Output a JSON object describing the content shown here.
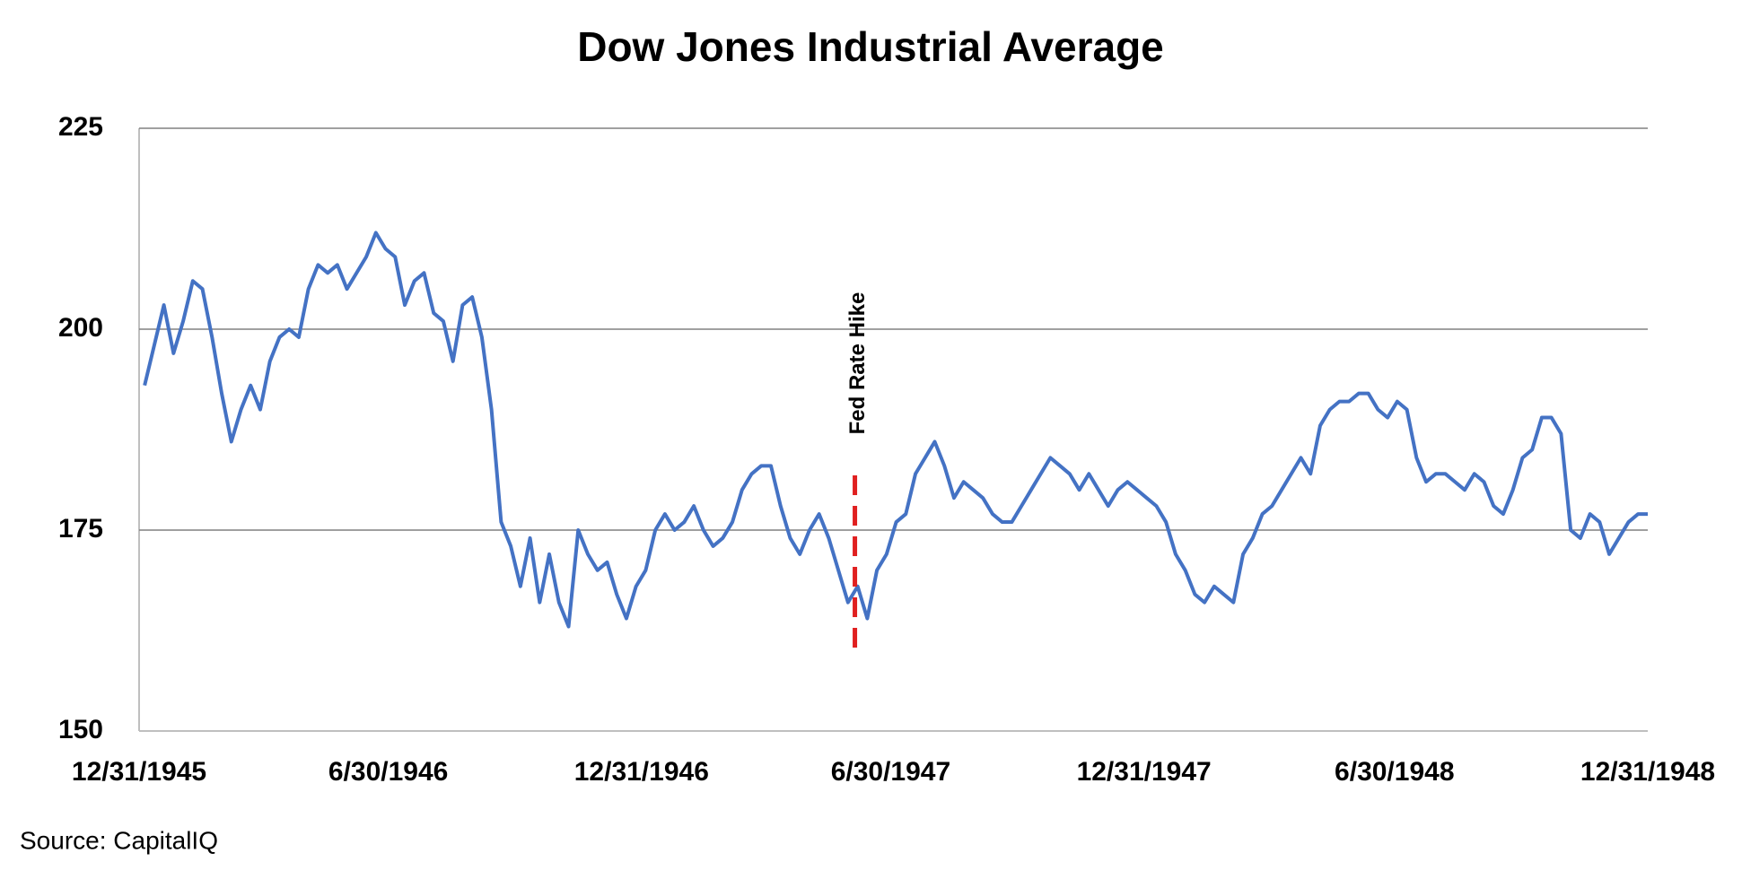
{
  "chart_data": {
    "type": "line",
    "title": "Dow Jones Industrial Average",
    "source": "Source: CapitalIQ",
    "color": "#4472c4",
    "grid": true,
    "x": [
      "1946-01-04",
      "1946-01-11",
      "1946-01-18",
      "1946-01-25",
      "1946-02-01",
      "1946-02-08",
      "1946-02-15",
      "1946-02-22",
      "1946-03-01",
      "1946-03-08",
      "1946-03-15",
      "1946-03-22",
      "1946-03-29",
      "1946-04-05",
      "1946-04-12",
      "1946-04-19",
      "1946-04-26",
      "1946-05-03",
      "1946-05-10",
      "1946-05-17",
      "1946-05-24",
      "1946-05-31",
      "1946-06-07",
      "1946-06-14",
      "1946-06-21",
      "1946-06-28",
      "1946-07-05",
      "1946-07-12",
      "1946-07-19",
      "1946-07-26",
      "1946-08-02",
      "1946-08-09",
      "1946-08-16",
      "1946-08-23",
      "1946-08-30",
      "1946-09-06",
      "1946-09-13",
      "1946-09-20",
      "1946-09-27",
      "1946-10-04",
      "1946-10-11",
      "1946-10-18",
      "1946-10-25",
      "1946-11-01",
      "1946-11-08",
      "1946-11-15",
      "1946-11-22",
      "1946-11-29",
      "1946-12-06",
      "1946-12-13",
      "1946-12-20",
      "1946-12-27",
      "1947-01-03",
      "1947-01-10",
      "1947-01-17",
      "1947-01-24",
      "1947-01-31",
      "1947-02-07",
      "1947-02-14",
      "1947-02-21",
      "1947-02-28",
      "1947-03-07",
      "1947-03-14",
      "1947-03-21",
      "1947-03-28",
      "1947-04-04",
      "1947-04-11",
      "1947-04-18",
      "1947-04-25",
      "1947-05-02",
      "1947-05-09",
      "1947-05-16",
      "1947-05-23",
      "1947-05-30",
      "1947-06-06",
      "1947-06-13",
      "1947-06-20",
      "1947-06-27",
      "1947-07-04",
      "1947-07-11",
      "1947-07-18",
      "1947-07-25",
      "1947-08-01",
      "1947-08-08",
      "1947-08-15",
      "1947-08-22",
      "1947-08-29",
      "1947-09-05",
      "1947-09-12",
      "1947-09-19",
      "1947-09-26",
      "1947-10-03",
      "1947-10-10",
      "1947-10-17",
      "1947-10-24",
      "1947-10-31",
      "1947-11-07",
      "1947-11-14",
      "1947-11-21",
      "1947-11-28",
      "1947-12-05",
      "1947-12-12",
      "1947-12-19",
      "1947-12-26",
      "1948-01-02",
      "1948-01-09",
      "1948-01-16",
      "1948-01-23",
      "1948-01-30",
      "1948-02-06",
      "1948-02-13",
      "1948-02-20",
      "1948-02-27",
      "1948-03-05",
      "1948-03-12",
      "1948-03-19",
      "1948-03-26",
      "1948-04-02",
      "1948-04-09",
      "1948-04-16",
      "1948-04-23",
      "1948-04-30",
      "1948-05-07",
      "1948-05-14",
      "1948-05-21",
      "1948-05-28",
      "1948-06-04",
      "1948-06-11",
      "1948-06-18",
      "1948-06-25",
      "1948-07-02",
      "1948-07-09",
      "1948-07-16",
      "1948-07-23",
      "1948-07-30",
      "1948-08-06",
      "1948-08-13",
      "1948-08-20",
      "1948-08-27",
      "1948-09-03",
      "1948-09-10",
      "1948-09-17",
      "1948-09-24",
      "1948-10-01",
      "1948-10-08",
      "1948-10-15",
      "1948-10-22",
      "1948-10-29",
      "1948-11-05",
      "1948-11-12",
      "1948-11-19",
      "1948-11-26",
      "1948-12-03",
      "1948-12-10",
      "1948-12-17",
      "1948-12-24",
      "1948-12-31"
    ],
    "values": [
      193,
      198,
      203,
      197,
      201,
      206,
      205,
      199,
      192,
      186,
      190,
      193,
      190,
      196,
      199,
      200,
      199,
      205,
      208,
      207,
      208,
      205,
      207,
      209,
      212,
      210,
      209,
      203,
      206,
      207,
      202,
      201,
      196,
      203,
      204,
      199,
      190,
      176,
      173,
      168,
      174,
      166,
      172,
      166,
      163,
      175,
      172,
      170,
      171,
      167,
      164,
      168,
      170,
      175,
      177,
      175,
      176,
      178,
      175,
      173,
      174,
      176,
      180,
      182,
      183,
      183,
      178,
      174,
      172,
      175,
      177,
      174,
      170,
      166,
      168,
      164,
      170,
      172,
      176,
      177,
      182,
      184,
      186,
      183,
      179,
      181,
      180,
      179,
      177,
      176,
      176,
      178,
      180,
      182,
      184,
      183,
      182,
      180,
      182,
      180,
      178,
      180,
      181,
      180,
      179,
      178,
      176,
      172,
      170,
      167,
      166,
      168,
      167,
      166,
      172,
      174,
      177,
      178,
      180,
      182,
      184,
      182,
      188,
      190,
      191,
      191,
      192,
      192,
      190,
      189,
      191,
      190,
      184,
      181,
      182,
      182,
      181,
      180,
      182,
      181,
      178,
      177,
      180,
      184,
      185,
      189,
      189,
      187,
      175,
      174,
      177,
      176,
      172,
      174,
      176,
      177,
      177
    ],
    "ylim": [
      150,
      225
    ],
    "yticks": [
      150,
      175,
      200,
      225
    ],
    "xlim": [
      "1945-12-31",
      "1948-12-31"
    ],
    "xticks": [
      {
        "value": "1945-12-31",
        "label": "12/31/1945"
      },
      {
        "value": "1946-06-30",
        "label": "6/30/1946"
      },
      {
        "value": "1946-12-31",
        "label": "12/31/1946"
      },
      {
        "value": "1947-06-30",
        "label": "6/30/1947"
      },
      {
        "value": "1947-12-31",
        "label": "12/31/1947"
      },
      {
        "value": "1948-06-30",
        "label": "6/30/1948"
      },
      {
        "value": "1948-12-31",
        "label": "12/31/1948"
      }
    ],
    "annotation": {
      "text": "Fed Rate Hike",
      "x": "1947-06-04",
      "color": "#e02020"
    }
  }
}
